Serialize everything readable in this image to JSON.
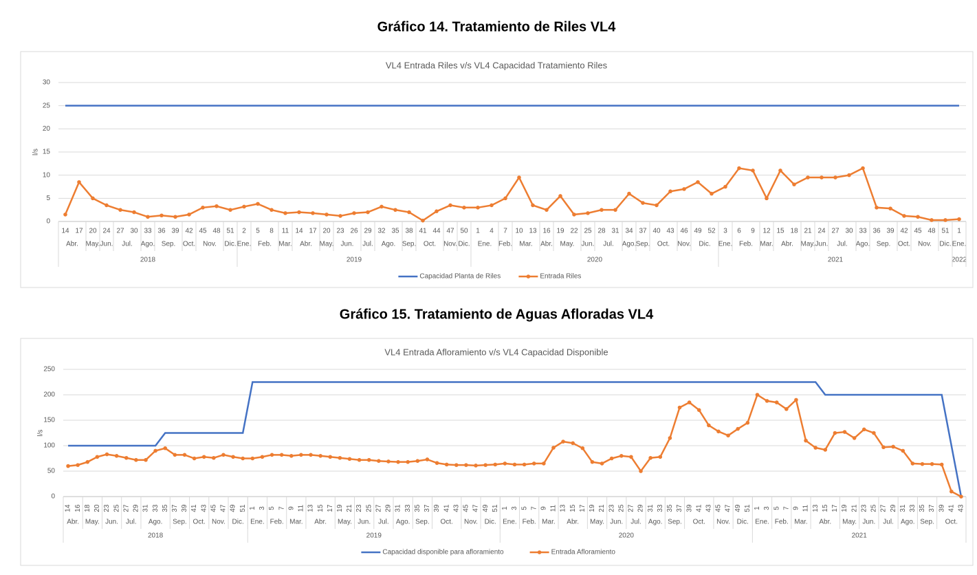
{
  "chart_data": [
    {
      "type": "line",
      "heading": "Gráfico 14. Tratamiento de Riles VL4",
      "title": "VL4 Entrada Riles v/s VL4 Capacidad Tratamiento Riles",
      "y_label": "l/s",
      "categories": [
        14,
        17,
        20,
        24,
        27,
        30,
        33,
        36,
        39,
        42,
        45,
        48,
        51,
        2,
        5,
        8,
        11,
        14,
        17,
        20,
        23,
        26,
        29,
        32,
        35,
        38,
        41,
        44,
        47,
        50,
        1,
        4,
        7,
        10,
        13,
        16,
        19,
        22,
        25,
        28,
        31,
        34,
        37,
        40,
        43,
        46,
        49,
        52,
        3,
        6,
        9,
        12,
        15,
        18,
        21,
        24,
        27,
        30,
        33,
        36,
        39,
        42,
        45,
        48,
        51,
        1
      ],
      "month_groups": [
        {
          "label": "Abr.",
          "count": 2
        },
        {
          "label": "May.",
          "count": 1
        },
        {
          "label": "Jun.",
          "count": 1
        },
        {
          "label": "Jul.",
          "count": 2
        },
        {
          "label": "Ago.",
          "count": 1
        },
        {
          "label": "Sep.",
          "count": 2
        },
        {
          "label": "Oct.",
          "count": 1
        },
        {
          "label": "Nov.",
          "count": 2
        },
        {
          "label": "Dic.",
          "count": 1
        },
        {
          "label": "Ene.",
          "count": 1
        },
        {
          "label": "Feb.",
          "count": 2
        },
        {
          "label": "Mar.",
          "count": 1
        },
        {
          "label": "Abr.",
          "count": 2
        },
        {
          "label": "May.",
          "count": 1
        },
        {
          "label": "Jun.",
          "count": 2
        },
        {
          "label": "Jul.",
          "count": 1
        },
        {
          "label": "Ago.",
          "count": 2
        },
        {
          "label": "Sep.",
          "count": 1
        },
        {
          "label": "Oct.",
          "count": 2
        },
        {
          "label": "Nov.",
          "count": 1
        },
        {
          "label": "Dic.",
          "count": 1
        },
        {
          "label": "Ene.",
          "count": 2
        },
        {
          "label": "Feb.",
          "count": 1
        },
        {
          "label": "Mar.",
          "count": 2
        },
        {
          "label": "Abr.",
          "count": 1
        },
        {
          "label": "May.",
          "count": 2
        },
        {
          "label": "Jun.",
          "count": 1
        },
        {
          "label": "Jul.",
          "count": 2
        },
        {
          "label": "Ago.",
          "count": 1
        },
        {
          "label": "Sep.",
          "count": 1
        },
        {
          "label": "Oct.",
          "count": 2
        },
        {
          "label": "Nov.",
          "count": 1
        },
        {
          "label": "Dic.",
          "count": 2
        },
        {
          "label": "Ene.",
          "count": 1
        },
        {
          "label": "Feb.",
          "count": 2
        },
        {
          "label": "Mar.",
          "count": 1
        },
        {
          "label": "Abr.",
          "count": 2
        },
        {
          "label": "May.",
          "count": 1
        },
        {
          "label": "Jun.",
          "count": 1
        },
        {
          "label": "Jul.",
          "count": 2
        },
        {
          "label": "Ago.",
          "count": 1
        },
        {
          "label": "Sep.",
          "count": 2
        },
        {
          "label": "Oct.",
          "count": 1
        },
        {
          "label": "Nov.",
          "count": 2
        },
        {
          "label": "Dic.",
          "count": 1
        },
        {
          "label": "Ene.",
          "count": 1
        }
      ],
      "year_groups": [
        {
          "label": "2018",
          "count": 13
        },
        {
          "label": "2019",
          "count": 17
        },
        {
          "label": "2020",
          "count": 18
        },
        {
          "label": "2021",
          "count": 17
        },
        {
          "label": "2022",
          "count": 1
        }
      ],
      "series": [
        {
          "name": "Capacidad Planta de Riles",
          "color": "#4472c4",
          "marker": false,
          "values": [
            25,
            25,
            25,
            25,
            25,
            25,
            25,
            25,
            25,
            25,
            25,
            25,
            25,
            25,
            25,
            25,
            25,
            25,
            25,
            25,
            25,
            25,
            25,
            25,
            25,
            25,
            25,
            25,
            25,
            25,
            25,
            25,
            25,
            25,
            25,
            25,
            25,
            25,
            25,
            25,
            25,
            25,
            25,
            25,
            25,
            25,
            25,
            25,
            25,
            25,
            25,
            25,
            25,
            25,
            25,
            25,
            25,
            25,
            25,
            25,
            25,
            25,
            25,
            25,
            25,
            25
          ]
        },
        {
          "name": "Entrada Riles",
          "color": "#ed7d31",
          "marker": true,
          "values": [
            1.5,
            8.5,
            5,
            3.5,
            2.5,
            2,
            1,
            1.3,
            1,
            1.5,
            3,
            3.3,
            2.5,
            3.2,
            3.8,
            2.5,
            1.8,
            2,
            1.8,
            1.5,
            1.2,
            1.8,
            2,
            3.2,
            2.5,
            2,
            0.2,
            2.2,
            3.5,
            3,
            3,
            3.5,
            5,
            9.5,
            3.5,
            2.5,
            5.5,
            1.5,
            1.8,
            2.5,
            2.5,
            6,
            4,
            3.5,
            6.5,
            7,
            8.5,
            6,
            7.5,
            11.5,
            11,
            5,
            11,
            8,
            9.5,
            9.5,
            9.5,
            10,
            11.5,
            3,
            2.8,
            1.2,
            1,
            0.3,
            0.3,
            0.5
          ]
        }
      ],
      "ylim": [
        0,
        30
      ],
      "yticks": [
        0,
        5,
        10,
        15,
        20,
        25,
        30
      ],
      "grid": true,
      "legend": "bottom"
    },
    {
      "type": "line",
      "heading": "Gráfico 15. Tratamiento de Aguas Afloradas VL4",
      "title": "VL4 Entrada Afloramiento v/s VL4 Capacidad Disponible",
      "y_label": "l/s",
      "categories": [
        14,
        16,
        18,
        20,
        23,
        25,
        27,
        29,
        31,
        33,
        35,
        37,
        39,
        41,
        43,
        45,
        47,
        49,
        51,
        1,
        3,
        5,
        7,
        9,
        11,
        13,
        15,
        17,
        19,
        21,
        23,
        25,
        27,
        29,
        31,
        33,
        35,
        37,
        39,
        41,
        43,
        45,
        47,
        49,
        51,
        1,
        3,
        5,
        7,
        9,
        11,
        13,
        15,
        17,
        19,
        21,
        23,
        25,
        27,
        29,
        31,
        33,
        35,
        37,
        39,
        41,
        43,
        45,
        47,
        49,
        51,
        1,
        3,
        5,
        7,
        9,
        11,
        13,
        15,
        17,
        19,
        21,
        23,
        25,
        27,
        29,
        31,
        33,
        35,
        37,
        39,
        41,
        43
      ],
      "month_groups": [
        {
          "label": "Abr.",
          "count": 2
        },
        {
          "label": "May.",
          "count": 2
        },
        {
          "label": "Jun.",
          "count": 2
        },
        {
          "label": "Jul.",
          "count": 2
        },
        {
          "label": "Ago.",
          "count": 3
        },
        {
          "label": "Sep.",
          "count": 2
        },
        {
          "label": "Oct.",
          "count": 2
        },
        {
          "label": "Nov.",
          "count": 2
        },
        {
          "label": "Dic.",
          "count": 2
        },
        {
          "label": "Ene.",
          "count": 2
        },
        {
          "label": "Feb.",
          "count": 2
        },
        {
          "label": "Mar.",
          "count": 2
        },
        {
          "label": "Abr.",
          "count": 3
        },
        {
          "label": "May.",
          "count": 2
        },
        {
          "label": "Jun.",
          "count": 2
        },
        {
          "label": "Jul.",
          "count": 2
        },
        {
          "label": "Ago.",
          "count": 2
        },
        {
          "label": "Sep.",
          "count": 2
        },
        {
          "label": "Oct.",
          "count": 3
        },
        {
          "label": "Nov.",
          "count": 2
        },
        {
          "label": "Dic.",
          "count": 2
        },
        {
          "label": "Ene.",
          "count": 2
        },
        {
          "label": "Feb.",
          "count": 2
        },
        {
          "label": "Mar.",
          "count": 2
        },
        {
          "label": "Abr.",
          "count": 3
        },
        {
          "label": "May.",
          "count": 2
        },
        {
          "label": "Jun.",
          "count": 2
        },
        {
          "label": "Jul.",
          "count": 2
        },
        {
          "label": "Ago.",
          "count": 2
        },
        {
          "label": "Sep.",
          "count": 2
        },
        {
          "label": "Oct.",
          "count": 3
        },
        {
          "label": "Nov.",
          "count": 2
        },
        {
          "label": "Dic.",
          "count": 2
        },
        {
          "label": "Ene.",
          "count": 2
        },
        {
          "label": "Feb.",
          "count": 2
        },
        {
          "label": "Mar.",
          "count": 2
        },
        {
          "label": "Abr.",
          "count": 3
        },
        {
          "label": "May.",
          "count": 2
        },
        {
          "label": "Jun.",
          "count": 2
        },
        {
          "label": "Jul.",
          "count": 2
        },
        {
          "label": "Ago.",
          "count": 2
        },
        {
          "label": "Sep.",
          "count": 2
        },
        {
          "label": "Oct.",
          "count": 3
        }
      ],
      "year_groups": [
        {
          "label": "2018",
          "count": 19
        },
        {
          "label": "2019",
          "count": 26
        },
        {
          "label": "2020",
          "count": 26
        },
        {
          "label": "2021",
          "count": 22
        }
      ],
      "series": [
        {
          "name": "Capacidad disponible para afloramiento",
          "color": "#4472c4",
          "marker": false,
          "values": [
            100,
            100,
            100,
            100,
            100,
            100,
            100,
            100,
            100,
            100,
            125,
            125,
            125,
            125,
            125,
            125,
            125,
            125,
            125,
            225,
            225,
            225,
            225,
            225,
            225,
            225,
            225,
            225,
            225,
            225,
            225,
            225,
            225,
            225,
            225,
            225,
            225,
            225,
            225,
            225,
            225,
            225,
            225,
            225,
            225,
            225,
            225,
            225,
            225,
            225,
            225,
            225,
            225,
            225,
            225,
            225,
            225,
            225,
            225,
            225,
            225,
            225,
            225,
            225,
            225,
            225,
            225,
            225,
            225,
            225,
            225,
            225,
            225,
            225,
            225,
            225,
            225,
            225,
            200,
            200,
            200,
            200,
            200,
            200,
            200,
            200,
            200,
            200,
            200,
            200,
            200,
            100,
            0
          ]
        },
        {
          "name": "Entrada Afloramiento",
          "color": "#ed7d31",
          "marker": true,
          "values": [
            60,
            62,
            68,
            78,
            83,
            80,
            76,
            72,
            72,
            90,
            95,
            82,
            82,
            75,
            78,
            76,
            82,
            78,
            75,
            75,
            78,
            82,
            82,
            80,
            82,
            82,
            80,
            78,
            76,
            74,
            72,
            72,
            70,
            69,
            68,
            68,
            70,
            73,
            66,
            63,
            62,
            62,
            61,
            62,
            63,
            65,
            63,
            63,
            65,
            65,
            96,
            108,
            105,
            95,
            68,
            65,
            75,
            80,
            78,
            50,
            76,
            78,
            115,
            175,
            185,
            170,
            140,
            128,
            120,
            133,
            145,
            200,
            188,
            185,
            172,
            190,
            110,
            96,
            92,
            125,
            127,
            115,
            132,
            125,
            97,
            98,
            90,
            65,
            64,
            64,
            63,
            10,
            0
          ]
        }
      ],
      "ylim": [
        0,
        250
      ],
      "yticks": [
        0,
        50,
        100,
        150,
        200,
        250
      ],
      "grid": true,
      "legend": "bottom"
    }
  ]
}
